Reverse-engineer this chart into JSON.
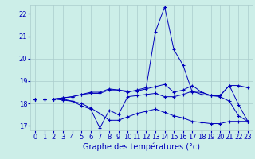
{
  "bg_color": "#cceee8",
  "grid_color": "#aacccc",
  "line_color": "#0000bb",
  "xlabel": "Graphe des températures (°c)",
  "x_hours": [
    0,
    1,
    2,
    3,
    4,
    5,
    6,
    7,
    8,
    9,
    10,
    11,
    12,
    13,
    14,
    15,
    16,
    17,
    18,
    19,
    20,
    21,
    22,
    23
  ],
  "series": {
    "line1": [
      18.2,
      18.2,
      18.2,
      18.2,
      18.1,
      18.0,
      17.8,
      17.55,
      17.25,
      17.25,
      17.4,
      17.55,
      17.65,
      17.75,
      17.6,
      17.45,
      17.35,
      17.2,
      17.15,
      17.1,
      17.1,
      17.2,
      17.2,
      17.2
    ],
    "line2": [
      18.2,
      18.2,
      18.2,
      18.15,
      18.1,
      17.9,
      17.75,
      16.9,
      17.7,
      17.5,
      18.3,
      18.35,
      18.4,
      18.45,
      18.3,
      18.3,
      18.4,
      18.55,
      18.4,
      18.35,
      18.3,
      18.1,
      17.45,
      17.2
    ],
    "line3": [
      18.2,
      18.2,
      18.2,
      18.25,
      18.3,
      18.4,
      18.45,
      18.45,
      18.6,
      18.6,
      18.55,
      18.55,
      18.65,
      18.75,
      18.85,
      18.5,
      18.6,
      18.8,
      18.5,
      18.35,
      18.35,
      18.8,
      18.8,
      18.7
    ],
    "line4": [
      18.2,
      18.2,
      18.2,
      18.25,
      18.3,
      18.4,
      18.5,
      18.5,
      18.65,
      18.6,
      18.5,
      18.6,
      18.7,
      21.2,
      22.3,
      20.4,
      19.7,
      18.5,
      18.5,
      18.35,
      18.35,
      18.8,
      17.95,
      17.2
    ]
  },
  "ylim": [
    16.8,
    22.4
  ],
  "yticks": [
    17,
    18,
    19,
    20,
    21,
    22
  ],
  "xtick_labels": [
    "0",
    "1",
    "2",
    "3",
    "4",
    "5",
    "6",
    "7",
    "8",
    "9",
    "10",
    "11",
    "12",
    "13",
    "14",
    "15",
    "16",
    "17",
    "18",
    "19",
    "20",
    "21",
    "22",
    "23"
  ],
  "xlabel_color": "#0000bb",
  "xlabel_fontsize": 7,
  "tick_fontsize": 6,
  "marker": "+"
}
